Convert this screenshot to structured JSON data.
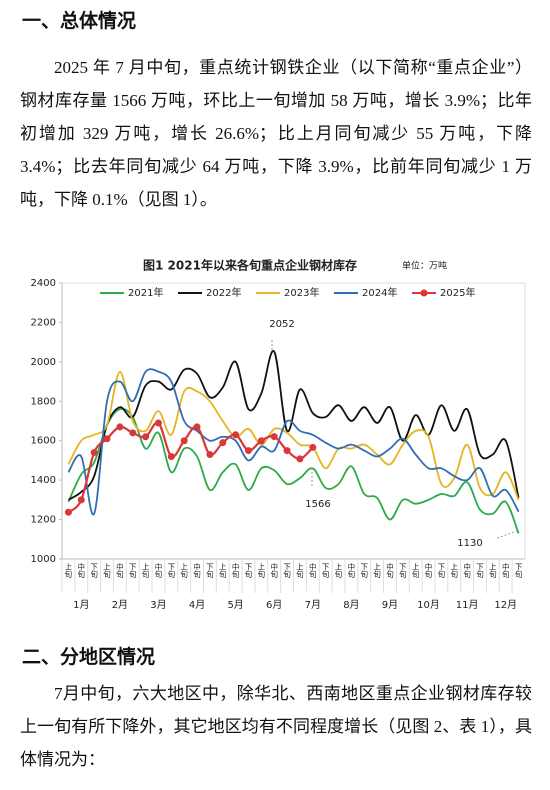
{
  "heading_1": "一、总体情况",
  "paragraph_1": "2025 年 7 月中旬，重点统计钢铁企业（以下简称“重点企业”）钢材库存量 1566 万吨，环比上一旬增加 58 万吨，增长 3.9%；比年初增加 329 万吨，增长 26.6%；比上月同旬减少 55 万吨，下降 3.4%；比去年同旬减少 64 万吨，下降 3.9%，比前年同旬减少 1 万吨，下降 0.1%（见图 1）。",
  "chart_data": {
    "type": "line",
    "title": "图1 2021年以来各旬重点企业钢材库存",
    "unit_label": "单位：万吨",
    "categories": [
      "上旬",
      "中旬",
      "下旬",
      "上旬",
      "中旬",
      "下旬",
      "上旬",
      "中旬",
      "下旬",
      "上旬",
      "中旬",
      "下旬",
      "上旬",
      "中旬",
      "下旬",
      "上旬",
      "中旬",
      "下旬",
      "上旬",
      "中旬",
      "下旬",
      "上旬",
      "中旬",
      "下旬",
      "上旬",
      "中旬",
      "下旬",
      "上旬",
      "中旬",
      "下旬",
      "上旬",
      "中旬",
      "下旬",
      "上旬",
      "中旬",
      "下旬"
    ],
    "month_labels": [
      "1月",
      "2月",
      "3月",
      "4月",
      "5月",
      "6月",
      "7月",
      "8月",
      "9月",
      "10月",
      "11月",
      "12月"
    ],
    "ylim": [
      1000,
      2400
    ],
    "yticks": [
      1000,
      1200,
      1400,
      1600,
      1800,
      2000,
      2200,
      2400
    ],
    "legend": "top",
    "series": [
      {
        "name": "2021年",
        "color": "#2eaa4a",
        "values": [
          1290,
          1430,
          1490,
          1680,
          1760,
          1720,
          1560,
          1640,
          1440,
          1560,
          1520,
          1350,
          1440,
          1480,
          1350,
          1460,
          1450,
          1380,
          1410,
          1460,
          1360,
          1380,
          1470,
          1330,
          1310,
          1200,
          1300,
          1280,
          1300,
          1330,
          1320,
          1390,
          1250,
          1230,
          1290,
          1130
        ]
      },
      {
        "name": "2022年",
        "color": "#111111",
        "values": [
          1300,
          1340,
          1420,
          1680,
          1770,
          1720,
          1880,
          1900,
          1860,
          1960,
          1940,
          1820,
          1870,
          2000,
          1760,
          1840,
          2052,
          1650,
          1860,
          1740,
          1720,
          1780,
          1700,
          1770,
          1690,
          1770,
          1600,
          1730,
          1630,
          1780,
          1650,
          1760,
          1530,
          1530,
          1600,
          1310
        ]
      },
      {
        "name": "2023年",
        "color": "#e6b422",
        "values": [
          1480,
          1600,
          1630,
          1680,
          1950,
          1700,
          1650,
          1750,
          1630,
          1850,
          1850,
          1800,
          1700,
          1620,
          1660,
          1580,
          1660,
          1640,
          1580,
          1567,
          1460,
          1560,
          1560,
          1580,
          1530,
          1480,
          1580,
          1650,
          1620,
          1380,
          1410,
          1580,
          1360,
          1330,
          1440,
          1300
        ]
      },
      {
        "name": "2024年",
        "color": "#2f6db5",
        "values": [
          1440,
          1520,
          1230,
          1800,
          1900,
          1800,
          1950,
          1950,
          1900,
          1700,
          1650,
          1600,
          1620,
          1600,
          1500,
          1570,
          1550,
          1700,
          1650,
          1630,
          1590,
          1560,
          1580,
          1550,
          1520,
          1560,
          1610,
          1530,
          1460,
          1460,
          1420,
          1400,
          1460,
          1320,
          1350,
          1240
        ]
      },
      {
        "name": "2025年",
        "color": "#d9383a",
        "values": [
          1237,
          1300,
          1540,
          1610,
          1670,
          1640,
          1620,
          1690,
          1520,
          1600,
          1670,
          1530,
          1590,
          1630,
          1550,
          1600,
          1621,
          1550,
          1508,
          1566,
          null,
          null,
          null,
          null,
          null,
          null,
          null,
          null,
          null,
          null,
          null,
          null,
          null,
          null,
          null,
          null
        ]
      }
    ],
    "annotations": [
      "2052",
      "1566",
      "1130"
    ]
  },
  "heading_2": "二、分地区情况",
  "paragraph_2": "7月中旬，六大地区中，除华北、西南地区重点企业钢材库存较上一旬有所下降外，其它地区均有不同程度增长（见图 2、表 1），具体情况为："
}
